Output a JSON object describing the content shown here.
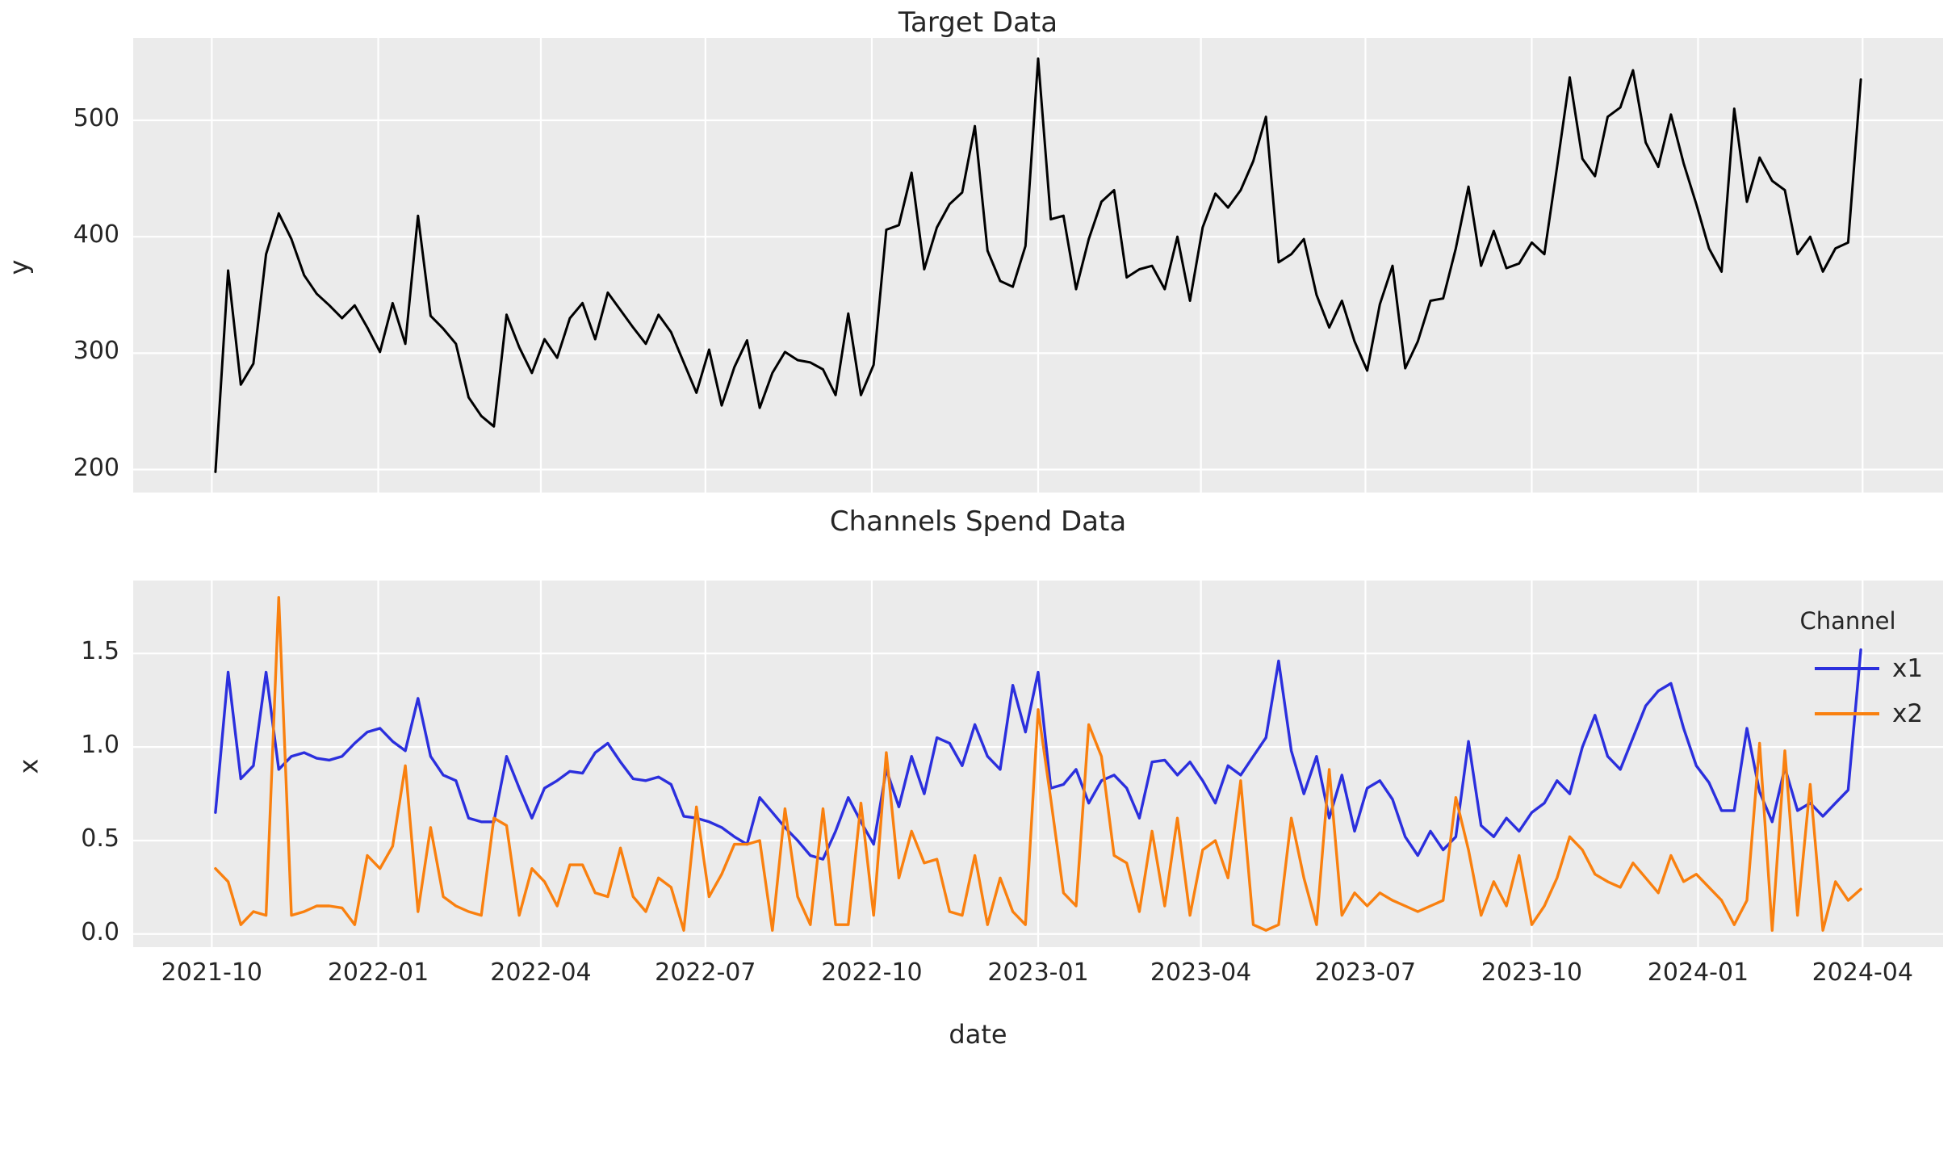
{
  "figure": {
    "background": "#ffffff",
    "axes_background": "#ebebeb",
    "grid_color": "#ffffff",
    "text_color": "#262626"
  },
  "chart_data": [
    {
      "id": "target",
      "type": "line",
      "title": "Target Data",
      "ylabel": "y",
      "grid": true,
      "yticks": [
        200,
        300,
        400,
        500
      ],
      "ylim": [
        180.25,
        570.75
      ],
      "series": [
        {
          "name": "y",
          "color": "#000000",
          "values": [
            198,
            371,
            273,
            291,
            385,
            420,
            398,
            367,
            351,
            341,
            330,
            341,
            322,
            301,
            343,
            308,
            418,
            332,
            321,
            308,
            262,
            246,
            237,
            333,
            305,
            283,
            312,
            296,
            330,
            343,
            312,
            352,
            337,
            322,
            308,
            333,
            318,
            292,
            266,
            303,
            255,
            288,
            311,
            253,
            283,
            301,
            294,
            292,
            286,
            264,
            334,
            264,
            290,
            406,
            410,
            455,
            372,
            408,
            428,
            438,
            495,
            388,
            362,
            357,
            392,
            553,
            415,
            418,
            355,
            398,
            430,
            440,
            365,
            372,
            375,
            355,
            400,
            345,
            408,
            437,
            425,
            440,
            465,
            503,
            378,
            385,
            398,
            350,
            322,
            345,
            310,
            285,
            342,
            375,
            287,
            310,
            345,
            347,
            390,
            443,
            375,
            405,
            373,
            377,
            395,
            385,
            460,
            537,
            467,
            452,
            503,
            511,
            543,
            481,
            460,
            505,
            463,
            428,
            390,
            370,
            510,
            430,
            468,
            448,
            440,
            385,
            400,
            370,
            390,
            395,
            535
          ]
        }
      ]
    },
    {
      "id": "channels",
      "type": "line",
      "title": "Channels Spend Data",
      "ylabel": "x",
      "xlabel": "date",
      "grid": true,
      "yticks": [
        0.0,
        0.5,
        1.0,
        1.5
      ],
      "ytick_labels": [
        "0.0",
        "0.5",
        "1.0",
        "1.5"
      ],
      "ylim": [
        -0.07,
        1.89
      ],
      "legend": {
        "title": "Channel",
        "position": "upper right"
      },
      "series": [
        {
          "name": "x1",
          "color": "#2b2fdd",
          "values": [
            0.65,
            1.4,
            0.83,
            0.9,
            1.4,
            0.88,
            0.95,
            0.97,
            0.94,
            0.93,
            0.95,
            1.02,
            1.08,
            1.1,
            1.03,
            0.98,
            1.26,
            0.95,
            0.85,
            0.82,
            0.62,
            0.6,
            0.6,
            0.95,
            0.78,
            0.62,
            0.78,
            0.82,
            0.87,
            0.86,
            0.97,
            1.02,
            0.92,
            0.83,
            0.82,
            0.84,
            0.8,
            0.63,
            0.62,
            0.6,
            0.57,
            0.52,
            0.48,
            0.73,
            0.65,
            0.57,
            0.5,
            0.42,
            0.4,
            0.55,
            0.73,
            0.6,
            0.48,
            0.88,
            0.68,
            0.95,
            0.75,
            1.05,
            1.02,
            0.9,
            1.12,
            0.95,
            0.88,
            1.33,
            1.08,
            1.4,
            0.78,
            0.8,
            0.88,
            0.7,
            0.82,
            0.85,
            0.78,
            0.62,
            0.92,
            0.93,
            0.85,
            0.92,
            0.82,
            0.7,
            0.9,
            0.85,
            0.95,
            1.05,
            1.46,
            0.98,
            0.75,
            0.95,
            0.62,
            0.85,
            0.55,
            0.78,
            0.82,
            0.72,
            0.52,
            0.42,
            0.55,
            0.45,
            0.52,
            1.03,
            0.58,
            0.52,
            0.62,
            0.55,
            0.65,
            0.7,
            0.82,
            0.75,
            1.0,
            1.17,
            0.95,
            0.88,
            1.05,
            1.22,
            1.3,
            1.34,
            1.1,
            0.9,
            0.81,
            0.66,
            0.66,
            1.1,
            0.76,
            0.6,
            0.89,
            0.66,
            0.7,
            0.63,
            0.7,
            0.77,
            1.52
          ]
        },
        {
          "name": "x2",
          "color": "#f9800f",
          "values": [
            0.35,
            0.28,
            0.05,
            0.12,
            0.1,
            1.8,
            0.1,
            0.12,
            0.15,
            0.15,
            0.14,
            0.05,
            0.42,
            0.35,
            0.47,
            0.9,
            0.12,
            0.57,
            0.2,
            0.15,
            0.12,
            0.1,
            0.62,
            0.58,
            0.1,
            0.35,
            0.28,
            0.15,
            0.37,
            0.37,
            0.22,
            0.2,
            0.46,
            0.2,
            0.12,
            0.3,
            0.25,
            0.02,
            0.68,
            0.2,
            0.32,
            0.48,
            0.48,
            0.5,
            0.02,
            0.67,
            0.2,
            0.05,
            0.67,
            0.05,
            0.05,
            0.7,
            0.1,
            0.97,
            0.3,
            0.55,
            0.38,
            0.4,
            0.12,
            0.1,
            0.42,
            0.05,
            0.3,
            0.12,
            0.05,
            1.2,
            0.72,
            0.22,
            0.15,
            1.12,
            0.95,
            0.42,
            0.38,
            0.12,
            0.55,
            0.15,
            0.62,
            0.1,
            0.45,
            0.5,
            0.3,
            0.82,
            0.05,
            0.02,
            0.05,
            0.62,
            0.3,
            0.05,
            0.88,
            0.1,
            0.22,
            0.15,
            0.22,
            0.18,
            0.15,
            0.12,
            0.15,
            0.18,
            0.73,
            0.45,
            0.1,
            0.28,
            0.15,
            0.42,
            0.05,
            0.15,
            0.3,
            0.52,
            0.45,
            0.32,
            0.28,
            0.25,
            0.38,
            0.3,
            0.22,
            0.42,
            0.28,
            0.32,
            0.25,
            0.18,
            0.05,
            0.18,
            1.02,
            0.02,
            0.98,
            0.1,
            0.8,
            0.02,
            0.28,
            0.18,
            0.24
          ]
        }
      ]
    }
  ],
  "x_axis": {
    "label": "date",
    "start_date": "2021-10-03",
    "frequency": "weekly",
    "n_points": 131,
    "end_date": "2024-03-31",
    "xlim_weeks": [
      -6.5,
      136.5
    ],
    "ticks": [
      {
        "label": "2021-10",
        "week": -0.29
      },
      {
        "label": "2022-01",
        "week": 12.86
      },
      {
        "label": "2022-04",
        "week": 25.71
      },
      {
        "label": "2022-07",
        "week": 38.71
      },
      {
        "label": "2022-10",
        "week": 51.86
      },
      {
        "label": "2023-01",
        "week": 65.0
      },
      {
        "label": "2023-04",
        "week": 77.86
      },
      {
        "label": "2023-07",
        "week": 90.86
      },
      {
        "label": "2023-10",
        "week": 104.0
      },
      {
        "label": "2024-01",
        "week": 117.14
      },
      {
        "label": "2024-04",
        "week": 130.14
      }
    ]
  },
  "legend": {
    "title": "Channel",
    "entries": [
      {
        "label": "x1",
        "color": "#2b2fdd"
      },
      {
        "label": "x2",
        "color": "#f9800f"
      }
    ]
  }
}
